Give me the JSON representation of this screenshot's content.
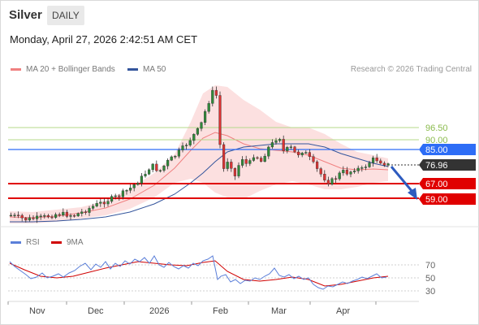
{
  "header": {
    "symbol": "Silver",
    "timeframe": "DAILY"
  },
  "datetime": "Monday, April 27, 2026 2:42:51 AM CET",
  "legend": {
    "bollinger": {
      "label": "MA 20 + Bollinger Bands",
      "color": "#f08080"
    },
    "ma50": {
      "label": "MA 50",
      "color": "#34559c"
    }
  },
  "credit": "Research © 2026 Trading Central",
  "levels": [
    {
      "value": 96.5,
      "label": "96.50",
      "kind": "target",
      "color": "#b5d98a"
    },
    {
      "value": 90.0,
      "label": "90.00",
      "kind": "target",
      "color": "#b5d98a"
    },
    {
      "value": 85.0,
      "label": "85.00",
      "kind": "pivot",
      "color": "#2d6df6"
    },
    {
      "value": 67.0,
      "label": "67.00",
      "kind": "support",
      "color": "#e00000"
    },
    {
      "value": 59.0,
      "label": "59.00",
      "kind": "support",
      "color": "#e00000"
    }
  ],
  "last_price": {
    "value": 76.96,
    "label": "76.96"
  },
  "x_axis": {
    "labels": [
      "Nov",
      "Dec",
      "2026",
      "Feb",
      "Mar",
      "Apr"
    ]
  },
  "rsi_panel": {
    "legend_rsi": "RSI",
    "legend_ma": "9MA",
    "rsi_color": "#5b7fd9",
    "ma_color": "#d00000",
    "levels": [
      "70",
      "50",
      "30"
    ]
  }
}
